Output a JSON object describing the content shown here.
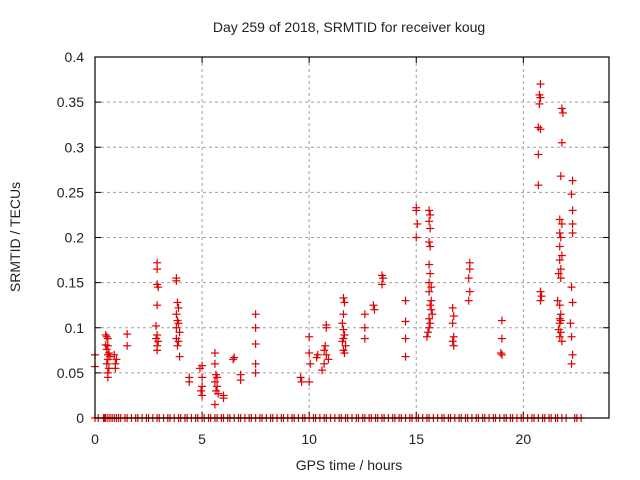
{
  "chart_data": {
    "type": "scatter",
    "title": "Day 259 of 2018, SRMTID for receiver koug",
    "xlabel": "GPS time / hours",
    "ylabel": "SRMTID / TECUs",
    "xlim": [
      0,
      24
    ],
    "ylim": [
      0,
      0.4
    ],
    "xticks": [
      0,
      5,
      10,
      15,
      20
    ],
    "xtick_labels": [
      "0",
      "5",
      "10",
      "15",
      "20"
    ],
    "yticks": [
      0,
      0.05,
      0.1,
      0.15,
      0.2,
      0.25,
      0.3,
      0.35,
      0.4
    ],
    "ytick_labels": [
      "0",
      "0.05",
      "0.1",
      "0.15",
      "0.2",
      "0.25",
      "0.3",
      "0.35",
      "0.4"
    ],
    "grid": true,
    "legend": "none",
    "marker": "plus",
    "color": "#e00000",
    "series": [
      {
        "name": "SRMTID",
        "points": [
          [
            0.0,
            0.07
          ],
          [
            0.0,
            0.057
          ],
          [
            0.5,
            0.092
          ],
          [
            0.55,
            0.09
          ],
          [
            0.6,
            0.088
          ],
          [
            0.5,
            0.081
          ],
          [
            0.6,
            0.08
          ],
          [
            0.55,
            0.076
          ],
          [
            0.65,
            0.072
          ],
          [
            0.6,
            0.07
          ],
          [
            0.7,
            0.068
          ],
          [
            0.6,
            0.065
          ],
          [
            0.55,
            0.06
          ],
          [
            0.65,
            0.055
          ],
          [
            0.6,
            0.05
          ],
          [
            0.6,
            0.045
          ],
          [
            0.9,
            0.07
          ],
          [
            1.0,
            0.065
          ],
          [
            0.95,
            0.06
          ],
          [
            0.95,
            0.055
          ],
          [
            1.5,
            0.093
          ],
          [
            1.5,
            0.08
          ],
          [
            2.9,
            0.172
          ],
          [
            2.9,
            0.165
          ],
          [
            2.9,
            0.148
          ],
          [
            2.95,
            0.145
          ],
          [
            2.9,
            0.125
          ],
          [
            2.85,
            0.102
          ],
          [
            2.9,
            0.092
          ],
          [
            2.85,
            0.088
          ],
          [
            2.95,
            0.085
          ],
          [
            2.9,
            0.08
          ],
          [
            2.9,
            0.075
          ],
          [
            3.8,
            0.155
          ],
          [
            3.8,
            0.152
          ],
          [
            3.85,
            0.128
          ],
          [
            3.9,
            0.122
          ],
          [
            3.8,
            0.115
          ],
          [
            3.85,
            0.108
          ],
          [
            3.9,
            0.105
          ],
          [
            3.8,
            0.1
          ],
          [
            3.95,
            0.095
          ],
          [
            3.8,
            0.088
          ],
          [
            3.9,
            0.085
          ],
          [
            3.85,
            0.08
          ],
          [
            3.95,
            0.068
          ],
          [
            4.4,
            0.045
          ],
          [
            4.4,
            0.04
          ],
          [
            5.0,
            0.058
          ],
          [
            4.9,
            0.055
          ],
          [
            5.0,
            0.045
          ],
          [
            5.0,
            0.035
          ],
          [
            4.95,
            0.03
          ],
          [
            5.0,
            0.025
          ],
          [
            5.6,
            0.072
          ],
          [
            5.6,
            0.06
          ],
          [
            5.65,
            0.048
          ],
          [
            5.7,
            0.045
          ],
          [
            5.6,
            0.04
          ],
          [
            5.7,
            0.035
          ],
          [
            5.65,
            0.03
          ],
          [
            5.75,
            0.027
          ],
          [
            5.6,
            0.015
          ],
          [
            6.0,
            0.025
          ],
          [
            6.0,
            0.022
          ],
          [
            6.5,
            0.067
          ],
          [
            6.45,
            0.065
          ],
          [
            6.8,
            0.048
          ],
          [
            6.8,
            0.042
          ],
          [
            7.5,
            0.115
          ],
          [
            7.5,
            0.1
          ],
          [
            7.5,
            0.082
          ],
          [
            7.5,
            0.06
          ],
          [
            7.5,
            0.05
          ],
          [
            9.6,
            0.045
          ],
          [
            9.65,
            0.04
          ],
          [
            10.0,
            0.09
          ],
          [
            10.0,
            0.072
          ],
          [
            10.05,
            0.06
          ],
          [
            10.0,
            0.04
          ],
          [
            10.4,
            0.07
          ],
          [
            10.35,
            0.067
          ],
          [
            10.8,
            0.103
          ],
          [
            10.8,
            0.1
          ],
          [
            10.75,
            0.08
          ],
          [
            10.7,
            0.075
          ],
          [
            10.8,
            0.07
          ],
          [
            10.9,
            0.065
          ],
          [
            10.7,
            0.06
          ],
          [
            10.6,
            0.053
          ],
          [
            11.6,
            0.133
          ],
          [
            11.65,
            0.128
          ],
          [
            11.6,
            0.115
          ],
          [
            11.55,
            0.105
          ],
          [
            11.6,
            0.098
          ],
          [
            11.65,
            0.092
          ],
          [
            11.6,
            0.088
          ],
          [
            11.55,
            0.085
          ],
          [
            11.7,
            0.08
          ],
          [
            11.6,
            0.075
          ],
          [
            11.65,
            0.072
          ],
          [
            12.6,
            0.115
          ],
          [
            12.6,
            0.1
          ],
          [
            12.6,
            0.088
          ],
          [
            13.0,
            0.125
          ],
          [
            13.05,
            0.12
          ],
          [
            13.4,
            0.158
          ],
          [
            13.45,
            0.155
          ],
          [
            13.4,
            0.148
          ],
          [
            14.5,
            0.13
          ],
          [
            14.5,
            0.107
          ],
          [
            14.5,
            0.088
          ],
          [
            14.5,
            0.068
          ],
          [
            15.0,
            0.233
          ],
          [
            15.0,
            0.23
          ],
          [
            15.05,
            0.215
          ],
          [
            15.0,
            0.2
          ],
          [
            15.6,
            0.23
          ],
          [
            15.65,
            0.225
          ],
          [
            15.6,
            0.218
          ],
          [
            15.65,
            0.21
          ],
          [
            15.6,
            0.195
          ],
          [
            15.65,
            0.19
          ],
          [
            15.6,
            0.17
          ],
          [
            15.65,
            0.16
          ],
          [
            15.6,
            0.15
          ],
          [
            15.7,
            0.145
          ],
          [
            15.6,
            0.14
          ],
          [
            15.7,
            0.13
          ],
          [
            15.65,
            0.125
          ],
          [
            15.7,
            0.12
          ],
          [
            15.75,
            0.115
          ],
          [
            15.6,
            0.11
          ],
          [
            15.65,
            0.105
          ],
          [
            15.6,
            0.1
          ],
          [
            15.55,
            0.095
          ],
          [
            15.5,
            0.09
          ],
          [
            16.7,
            0.122
          ],
          [
            16.75,
            0.113
          ],
          [
            16.7,
            0.105
          ],
          [
            16.75,
            0.09
          ],
          [
            16.7,
            0.085
          ],
          [
            16.75,
            0.08
          ],
          [
            17.5,
            0.172
          ],
          [
            17.5,
            0.165
          ],
          [
            17.45,
            0.155
          ],
          [
            17.5,
            0.14
          ],
          [
            17.45,
            0.13
          ],
          [
            19.0,
            0.108
          ],
          [
            19.0,
            0.088
          ],
          [
            18.95,
            0.072
          ],
          [
            19.0,
            0.07
          ],
          [
            20.8,
            0.37
          ],
          [
            20.75,
            0.358
          ],
          [
            20.8,
            0.355
          ],
          [
            20.75,
            0.348
          ],
          [
            20.7,
            0.322
          ],
          [
            20.8,
            0.32
          ],
          [
            20.7,
            0.292
          ],
          [
            20.7,
            0.258
          ],
          [
            20.8,
            0.14
          ],
          [
            20.85,
            0.135
          ],
          [
            20.8,
            0.13
          ],
          [
            21.8,
            0.343
          ],
          [
            21.85,
            0.338
          ],
          [
            21.8,
            0.305
          ],
          [
            21.75,
            0.268
          ],
          [
            21.7,
            0.22
          ],
          [
            21.8,
            0.215
          ],
          [
            21.7,
            0.205
          ],
          [
            21.75,
            0.2
          ],
          [
            21.7,
            0.19
          ],
          [
            21.8,
            0.18
          ],
          [
            21.7,
            0.175
          ],
          [
            21.75,
            0.165
          ],
          [
            21.65,
            0.16
          ],
          [
            21.75,
            0.155
          ],
          [
            21.6,
            0.13
          ],
          [
            21.7,
            0.125
          ],
          [
            21.75,
            0.115
          ],
          [
            21.7,
            0.11
          ],
          [
            21.75,
            0.108
          ],
          [
            21.7,
            0.105
          ],
          [
            21.65,
            0.098
          ],
          [
            21.75,
            0.095
          ],
          [
            21.7,
            0.09
          ],
          [
            21.8,
            0.085
          ],
          [
            22.3,
            0.263
          ],
          [
            22.25,
            0.248
          ],
          [
            22.3,
            0.23
          ],
          [
            22.3,
            0.215
          ],
          [
            22.3,
            0.205
          ],
          [
            22.25,
            0.145
          ],
          [
            22.3,
            0.128
          ],
          [
            22.2,
            0.105
          ],
          [
            22.25,
            0.09
          ],
          [
            22.3,
            0.07
          ],
          [
            22.25,
            0.06
          ]
        ],
        "zero_points_x": [
          0.0,
          0.15,
          0.4,
          0.45,
          0.5,
          0.6,
          0.7,
          0.8,
          0.9,
          1.0,
          1.1,
          1.2,
          1.4,
          1.5,
          1.7,
          1.9,
          2.0,
          2.2,
          2.4,
          2.5,
          2.7,
          2.9,
          3.0,
          3.2,
          3.4,
          3.5,
          3.7,
          3.9,
          4.0,
          4.2,
          4.3,
          4.5,
          4.7,
          4.8,
          5.0,
          5.1,
          5.3,
          5.4,
          5.6,
          5.7,
          5.9,
          6.0,
          6.2,
          6.3,
          6.5,
          6.7,
          6.8,
          7.0,
          7.2,
          7.3,
          7.5,
          7.7,
          7.8,
          8.0,
          8.2,
          8.3,
          8.5,
          8.7,
          8.8,
          9.0,
          9.2,
          9.3,
          9.5,
          9.7,
          9.8,
          10.0,
          10.2,
          10.3,
          10.5,
          10.7,
          10.8,
          11.0,
          11.2,
          11.4,
          11.5,
          11.7,
          11.8,
          12.0,
          12.2,
          12.3,
          12.5,
          12.6,
          12.8,
          12.9,
          13.1,
          13.2,
          13.4,
          13.5,
          13.7,
          13.9,
          14.0,
          14.2,
          14.3,
          14.5,
          14.7,
          14.8,
          15.0,
          15.1,
          15.3,
          15.5,
          15.6,
          15.8,
          16.0,
          16.2,
          16.3,
          16.5,
          16.6,
          16.8,
          17.0,
          17.1,
          17.3,
          17.4,
          17.6,
          17.8,
          17.9,
          18.1,
          18.2,
          18.4,
          18.6,
          18.7,
          18.9,
          19.1,
          19.2,
          19.4,
          19.5,
          19.7,
          19.9,
          20.0,
          20.2,
          20.4,
          20.5,
          20.7,
          20.9,
          21.0,
          21.2,
          21.3,
          21.5,
          21.6,
          21.8,
          22.0,
          22.4,
          22.5,
          22.7
        ]
      }
    ]
  }
}
